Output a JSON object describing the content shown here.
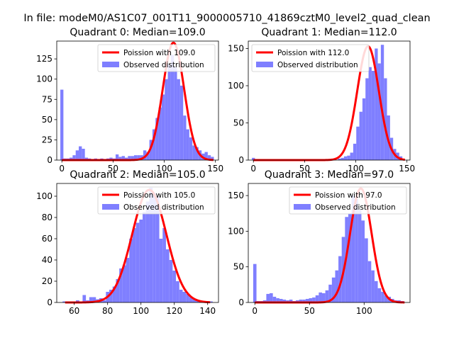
{
  "figure": {
    "suptitle": "In file: modeM0/AS1C07_001T11_9000005710_41869cztM0_level2_quad_clean"
  },
  "colors": {
    "bars": "#7f7fff",
    "curve": "#ff0000",
    "axis": "#000000",
    "legend_border": "#cccccc"
  },
  "chart_data": [
    {
      "type": "bar",
      "title": "Quadrant 0: Median=109.0",
      "xlim": [
        -5,
        153
      ],
      "ylim": [
        0,
        147
      ],
      "xticks": [
        0,
        50,
        100,
        150
      ],
      "yticks": [
        0,
        25,
        50,
        75,
        100,
        125
      ],
      "legend": {
        "position": "top-right",
        "entries": [
          "Poission with 109.0",
          "Observed distribution"
        ]
      },
      "bin_width": 3.0,
      "hist_x": [
        0,
        3,
        6,
        9,
        12,
        15,
        18,
        21,
        24,
        27,
        30,
        33,
        36,
        39,
        42,
        45,
        48,
        51,
        54,
        57,
        60,
        63,
        66,
        69,
        72,
        75,
        78,
        81,
        84,
        87,
        90,
        93,
        96,
        99,
        102,
        105,
        108,
        111,
        114,
        117,
        120,
        123,
        126,
        129,
        132,
        135,
        138,
        141,
        144,
        147
      ],
      "hist_y": [
        87,
        2,
        2,
        3,
        6,
        12,
        17,
        14,
        3,
        2,
        1,
        2,
        1,
        2,
        1,
        2,
        3,
        2,
        7,
        4,
        5,
        3,
        5,
        5,
        6,
        6,
        6,
        12,
        10,
        25,
        38,
        52,
        65,
        81,
        100,
        118,
        130,
        115,
        100,
        92,
        55,
        38,
        28,
        18,
        16,
        12,
        8,
        10,
        6,
        4
      ],
      "poisson_mean": 109.0,
      "poisson_peak": 145
    },
    {
      "type": "bar",
      "title": "Quadrant 1: Median=112.0",
      "xlim": [
        -5,
        153
      ],
      "ylim": [
        0,
        160
      ],
      "xticks": [
        0,
        50,
        100,
        150
      ],
      "yticks": [
        0,
        50,
        100,
        150
      ],
      "legend": {
        "position": "top-left",
        "entries": [
          "Poission with 112.0",
          "Observed distribution"
        ]
      },
      "bin_width": 3.0,
      "hist_x": [
        0,
        84,
        87,
        90,
        93,
        96,
        99,
        102,
        105,
        108,
        111,
        114,
        117,
        120,
        123,
        126,
        129,
        132,
        135,
        138,
        141,
        144
      ],
      "hist_y": [
        3,
        2,
        3,
        5,
        6,
        10,
        22,
        45,
        65,
        83,
        110,
        125,
        120,
        150,
        130,
        155,
        110,
        60,
        30,
        15,
        10,
        5
      ],
      "poisson_mean": 112.0,
      "poisson_peak": 153
    },
    {
      "type": "bar",
      "title": "Quadrant 2: Median=105.0",
      "xlim": [
        49.5,
        146.5
      ],
      "ylim": [
        0,
        112
      ],
      "xticks": [
        60,
        80,
        100,
        120,
        140
      ],
      "yticks": [
        0,
        20,
        40,
        60,
        80,
        100
      ],
      "legend": {
        "position": "top-right",
        "entries": [
          "Poission with 105.0",
          "Observed distribution"
        ]
      },
      "bin_width": 2.0,
      "hist_x": [
        54,
        56,
        58,
        60,
        62,
        64,
        66,
        68,
        70,
        72,
        74,
        76,
        78,
        80,
        82,
        84,
        86,
        88,
        90,
        92,
        94,
        96,
        98,
        100,
        102,
        104,
        106,
        108,
        110,
        112,
        114,
        116,
        118,
        120,
        122,
        124,
        126,
        128,
        130,
        132,
        134,
        136,
        138,
        140,
        142
      ],
      "hist_y": [
        1,
        1,
        0,
        1,
        2,
        1,
        7,
        2,
        5,
        5,
        3,
        4,
        2,
        10,
        12,
        15,
        22,
        32,
        35,
        42,
        60,
        70,
        75,
        78,
        85,
        95,
        108,
        103,
        100,
        60,
        70,
        50,
        40,
        30,
        20,
        12,
        10,
        8,
        5,
        3,
        2,
        1,
        1,
        1,
        1
      ],
      "poisson_mean": 105.0,
      "poisson_peak": 106
    },
    {
      "type": "bar",
      "title": "Quadrant 3: Median=97.0",
      "xlim": [
        -6,
        142
      ],
      "ylim": [
        0,
        167
      ],
      "xticks": [
        0,
        50,
        100
      ],
      "yticks": [
        0,
        50,
        100,
        150
      ],
      "legend": {
        "position": "top-right",
        "entries": [
          "Poission with 97.0",
          "Observed distribution"
        ]
      },
      "bin_width": 3.0,
      "hist_x": [
        0,
        3,
        6,
        9,
        12,
        15,
        18,
        21,
        24,
        27,
        30,
        33,
        36,
        39,
        42,
        45,
        48,
        51,
        54,
        57,
        60,
        63,
        66,
        69,
        72,
        75,
        78,
        81,
        84,
        87,
        90,
        93,
        96,
        99,
        102,
        105,
        108,
        111,
        114,
        117,
        120,
        123,
        126,
        129,
        132,
        135
      ],
      "hist_y": [
        54,
        2,
        2,
        3,
        12,
        13,
        8,
        6,
        5,
        4,
        3,
        4,
        2,
        3,
        4,
        4,
        5,
        6,
        7,
        10,
        14,
        13,
        17,
        25,
        35,
        45,
        65,
        92,
        120,
        125,
        150,
        145,
        130,
        115,
        90,
        58,
        45,
        30,
        20,
        15,
        10,
        8,
        5,
        3,
        3,
        2
      ],
      "poisson_mean": 97.0,
      "poisson_peak": 160
    }
  ]
}
